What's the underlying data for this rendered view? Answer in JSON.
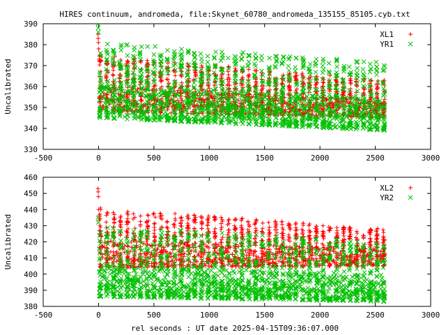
{
  "title": "HIRES continuum, andromeda, file:Skynet_60780_andromeda_135155_85105.cyb.txt",
  "xlabel": "rel seconds : UT date 2025-04-15T09:36:07.000",
  "chart_data": [
    {
      "type": "scatter",
      "ylabel": "Uncalibrated",
      "xlim": [
        -500,
        3000
      ],
      "ylim": [
        330,
        390
      ],
      "xticks": [
        "-500",
        "0",
        "500",
        "1000",
        "1500",
        "2000",
        "2500",
        "3000"
      ],
      "yticks": [
        "330",
        "340",
        "350",
        "360",
        "370",
        "380",
        "390"
      ],
      "legend_position": "top-right",
      "grid": false,
      "series": [
        {
          "name": "XL1",
          "color": "#ff0000",
          "marker": "+",
          "x_range": [
            0,
            2580
          ],
          "top_start": 375,
          "top_end": 363,
          "bottom_start": 348,
          "bottom_end": 345,
          "outliers_y": [
            385,
            383,
            381,
            378
          ]
        },
        {
          "name": "YR1",
          "color": "#00c000",
          "marker": "x",
          "x_range": [
            0,
            2580
          ],
          "top_start": 381,
          "top_end": 372,
          "bottom_start": 345,
          "bottom_end": 339,
          "outliers_y": [
            390,
            388,
            386
          ]
        }
      ]
    },
    {
      "type": "scatter",
      "ylabel": "Uncalibrated",
      "xlim": [
        -500,
        3000
      ],
      "ylim": [
        380,
        460
      ],
      "xticks": [
        "-500",
        "0",
        "500",
        "1000",
        "1500",
        "2000",
        "2500",
        "3000"
      ],
      "yticks": [
        "380",
        "390",
        "400",
        "410",
        "420",
        "430",
        "440",
        "450",
        "460"
      ],
      "legend_position": "top-right",
      "grid": false,
      "series": [
        {
          "name": "XL2",
          "color": "#ff0000",
          "marker": "+",
          "x_range": [
            0,
            2580
          ],
          "top_start": 441,
          "top_end": 428,
          "bottom_start": 404,
          "bottom_end": 405,
          "outliers_y": [
            453,
            451,
            448,
            440
          ]
        },
        {
          "name": "YR2",
          "color": "#00c000",
          "marker": "x",
          "x_range": [
            0,
            2580
          ],
          "top_start": 430,
          "top_end": 420,
          "bottom_start": 386,
          "bottom_end": 383,
          "outliers_y": [
            435,
            432
          ]
        }
      ]
    }
  ]
}
